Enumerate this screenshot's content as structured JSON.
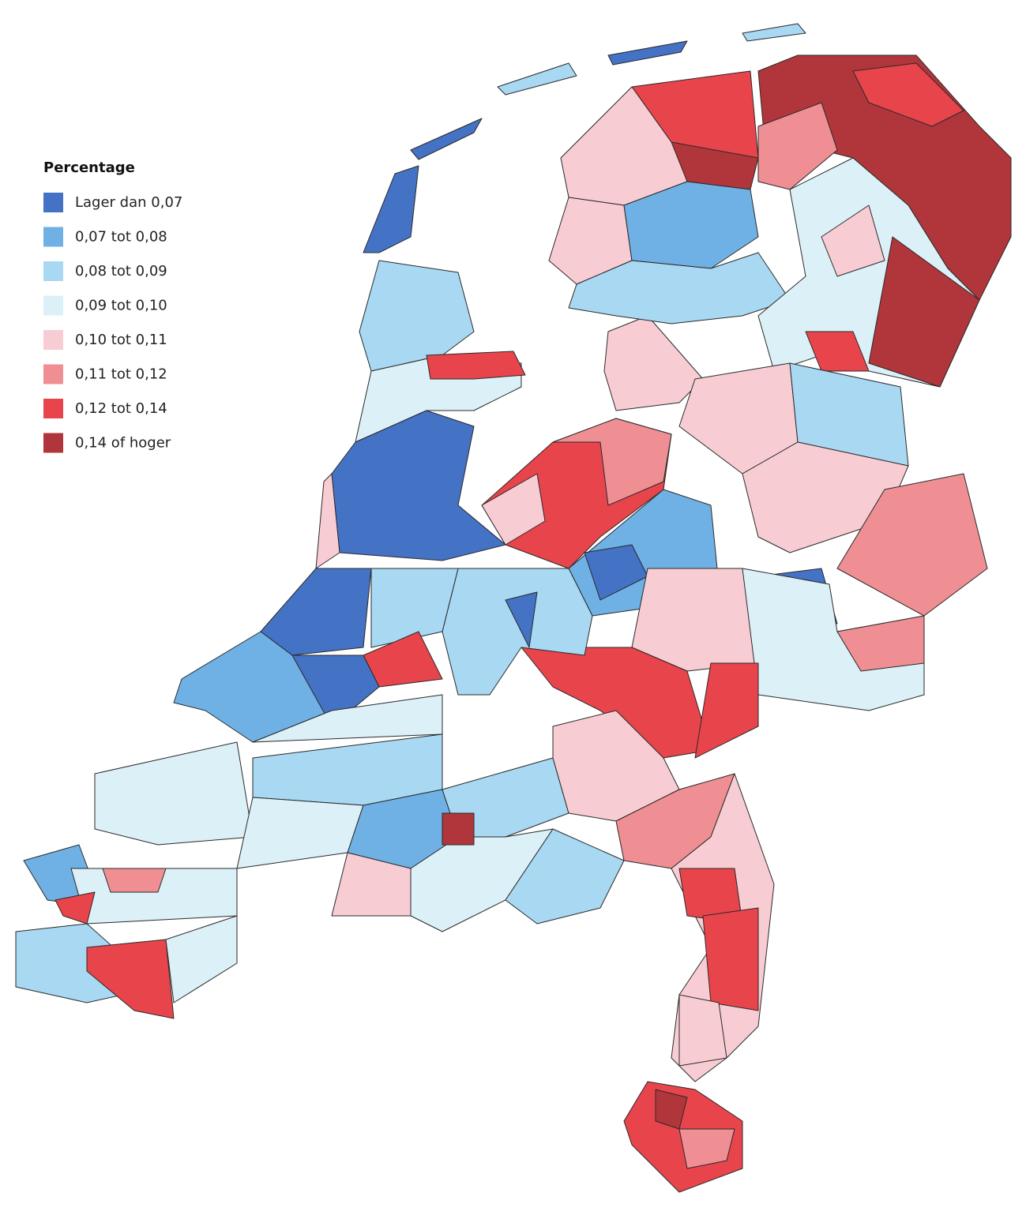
{
  "legend": {
    "title": "Percentage",
    "items": [
      {
        "label": "Lager dan 0,07",
        "color": "#4472c4"
      },
      {
        "label": "0,07 tot 0,08",
        "color": "#6fb1e4"
      },
      {
        "label": "0,08 tot 0,09",
        "color": "#a8d8f2"
      },
      {
        "label": "0,09 tot 0,10",
        "color": "#dcf0f7"
      },
      {
        "label": "0,10 tot 0,11",
        "color": "#f7cdd3"
      },
      {
        "label": "0,11 tot 0,12",
        "color": "#ef8f94"
      },
      {
        "label": "0,12 tot 0,14",
        "color": "#e8444c"
      },
      {
        "label": "0,14 of hoger",
        "color": "#b0363b"
      }
    ]
  }
}
